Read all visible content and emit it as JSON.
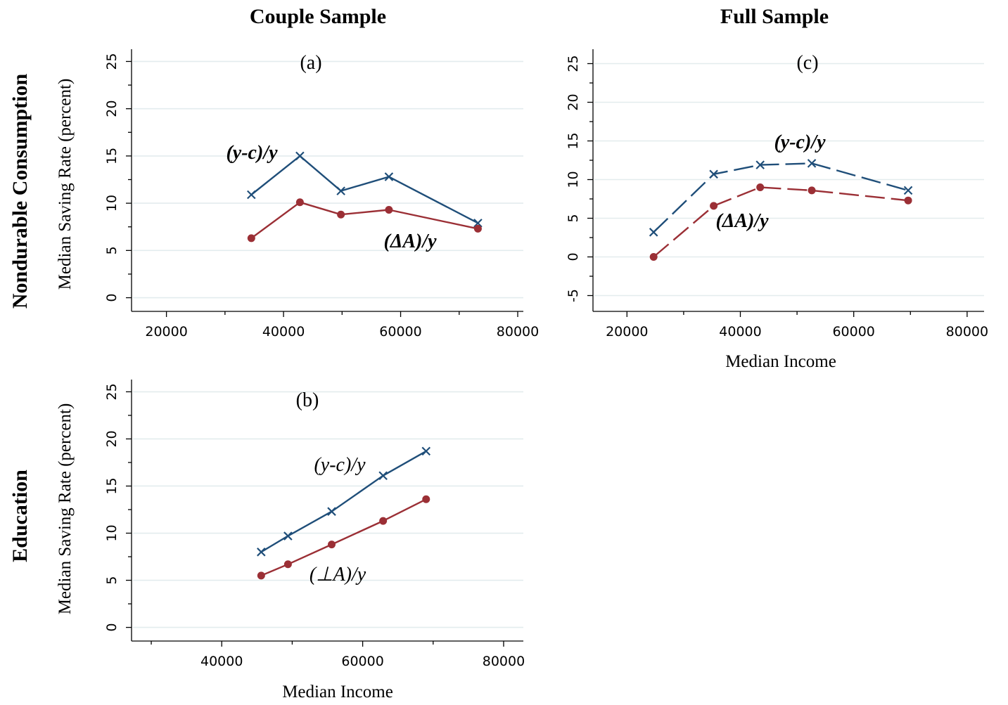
{
  "headers": {
    "col_left": "Couple Sample",
    "col_right": "Full Sample",
    "row_top": "Nondurable Consumption",
    "row_bottom": "Education"
  },
  "colors": {
    "yc": "#1f4e79",
    "dA": "#9b2f35",
    "grid": "#e3ecee"
  },
  "chart_data": [
    {
      "id": "a",
      "type": "line",
      "panel_label": "(a)",
      "xlabel": "",
      "ylabel": "Median Saving Rate (percent)",
      "xlim": [
        15000,
        80000
      ],
      "ylim": [
        -1,
        26
      ],
      "xticks": [
        20000,
        40000,
        60000,
        80000
      ],
      "yticks": [
        0,
        5,
        10,
        15,
        20,
        25
      ],
      "grid": true,
      "series": [
        {
          "name": "(y-c)/y",
          "marker": "x",
          "dash": false,
          "x": [
            34500,
            42800,
            49800,
            58000,
            73200
          ],
          "y": [
            10.9,
            15.0,
            11.3,
            12.8,
            7.9
          ]
        },
        {
          "name": "(ΔA)/y",
          "marker": "dot",
          "dash": false,
          "x": [
            34500,
            42800,
            49800,
            58000,
            73200
          ],
          "y": [
            6.3,
            10.1,
            8.8,
            9.3,
            7.3
          ]
        }
      ],
      "labels": [
        {
          "text": "(y-c)/y",
          "series": 0,
          "bold": true,
          "italic": true
        },
        {
          "text": "(ΔA)/y",
          "series": 1,
          "bold": true,
          "italic": true
        }
      ]
    },
    {
      "id": "b",
      "type": "line",
      "panel_label": "(b)",
      "xlabel": "Median Income",
      "ylabel": "Median Saving Rate (percent)",
      "xlim": [
        28000,
        82000
      ],
      "ylim": [
        -1,
        26
      ],
      "xticks": [
        40000,
        60000,
        80000
      ],
      "yticks": [
        0,
        5,
        10,
        15,
        20,
        25
      ],
      "grid": true,
      "series": [
        {
          "name": "(y-c)/y",
          "marker": "x",
          "dash": false,
          "x": [
            45600,
            49400,
            55600,
            62900,
            69000
          ],
          "y": [
            8.0,
            9.7,
            12.3,
            16.1,
            18.7
          ]
        },
        {
          "name": "(⊥A)/y",
          "marker": "dot",
          "dash": false,
          "x": [
            45600,
            49400,
            55600,
            62900,
            69000
          ],
          "y": [
            5.5,
            6.7,
            8.8,
            11.3,
            13.6
          ]
        }
      ],
      "labels": [
        {
          "text": "(y-c)/y",
          "series": 0,
          "bold": false,
          "italic": true
        },
        {
          "text": "(⊥A)/y",
          "series": 1,
          "bold": false,
          "italic": true
        }
      ]
    },
    {
      "id": "c",
      "type": "line",
      "panel_label": "(c)",
      "xlabel": "Median Income",
      "ylabel": "",
      "xlim": [
        15000,
        82000
      ],
      "ylim": [
        -6.5,
        26.5
      ],
      "xticks": [
        20000,
        40000,
        60000,
        80000
      ],
      "yticks": [
        -5,
        0,
        5,
        10,
        15,
        20,
        25
      ],
      "grid": true,
      "series": [
        {
          "name": "(y-c)/y",
          "marker": "x",
          "dash": true,
          "x": [
            24700,
            35300,
            43500,
            52600,
            69600
          ],
          "y": [
            3.2,
            10.7,
            11.9,
            12.1,
            8.6
          ]
        },
        {
          "name": "(ΔA)/y",
          "marker": "dot",
          "dash": true,
          "x": [
            24700,
            35300,
            43500,
            52600,
            69600
          ],
          "y": [
            0.0,
            6.6,
            9.0,
            8.6,
            7.3
          ]
        }
      ],
      "labels": [
        {
          "text": "(y-c)/y",
          "series": 0,
          "bold": true,
          "italic": true
        },
        {
          "text": "(ΔA)/y",
          "series": 1,
          "bold": true,
          "italic": true
        }
      ]
    }
  ]
}
